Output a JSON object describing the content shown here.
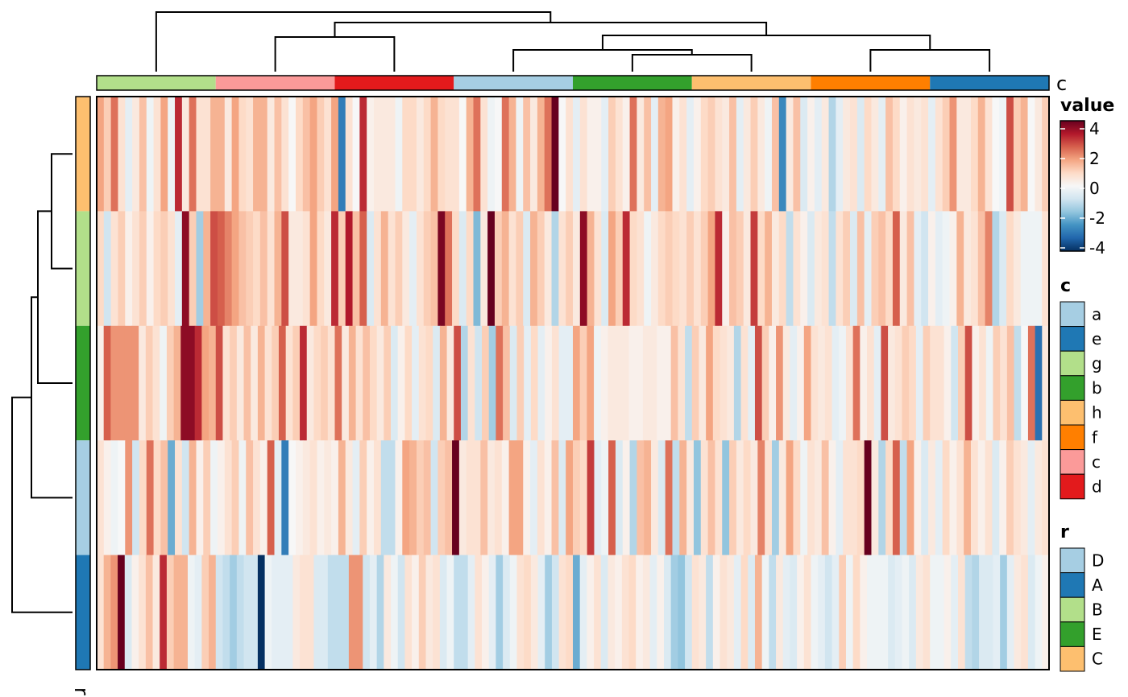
{
  "chart_data": {
    "type": "heatmap",
    "color_scale": {
      "title": "value",
      "min": -4,
      "max": 4,
      "ticks": [
        4,
        2,
        0,
        -2,
        -4
      ],
      "tick_labels": [
        "4",
        "2",
        "0",
        "-2",
        "-4"
      ],
      "palette": [
        "#053061",
        "#2166ac",
        "#4393c3",
        "#92c5de",
        "#d1e5f0",
        "#f7f7f7",
        "#fddbc7",
        "#f4a582",
        "#d6604d",
        "#b2182b",
        "#67001f"
      ]
    },
    "column_annotation": {
      "name": "c",
      "order": [
        "g",
        "c",
        "d",
        "a",
        "b",
        "h",
        "f",
        "e"
      ],
      "colors": {
        "a": "#a6cee3",
        "e": "#1f78b4",
        "g": "#b2df8a",
        "b": "#33a02c",
        "h": "#fdbf6f",
        "f": "#ff7f00",
        "c": "#fb9a99",
        "d": "#e31a1c"
      },
      "legend_order": [
        "a",
        "e",
        "g",
        "b",
        "h",
        "f",
        "c",
        "d"
      ]
    },
    "row_annotation": {
      "name": "r",
      "order": [
        "C",
        "B",
        "E",
        "D",
        "A"
      ],
      "colors": {
        "D": "#a6cee3",
        "A": "#1f78b4",
        "B": "#b2df8a",
        "E": "#33a02c",
        "C": "#fdbf6f"
      },
      "legend_order": [
        "D",
        "A",
        "B",
        "E",
        "C"
      ]
    },
    "rows": [
      {
        "id": "C",
        "values": [
          1.6,
          1.0,
          2.2,
          0.6,
          -0.4,
          0.4,
          1.2,
          -0.2,
          0.6,
          1.6,
          -0.2,
          3.0,
          0.4,
          2.2,
          0.6,
          0.6,
          1.4,
          1.4,
          0.4,
          1.6,
          0.8,
          0.6,
          1.4,
          1.4,
          0.4,
          1.2,
          0.6,
          0.0,
          0.8,
          1.2,
          1.6,
          1.0,
          0.6,
          1.6,
          -2.8,
          0.6,
          0.0,
          3.0,
          0.2,
          0.4,
          0.4,
          0.4,
          -0.2,
          0.8,
          0.8,
          0.4,
          0.8,
          1.4,
          0.8,
          0.6,
          0.6,
          0.0,
          1.4,
          2.2,
          0.6,
          -0.2,
          0.0,
          2.2,
          1.4,
          -0.2,
          1.2,
          0.4,
          1.4,
          2.2,
          4.0,
          0.0,
          0.6,
          -0.4,
          0.6,
          0.2,
          0.2,
          -0.4,
          1.0,
          0.6,
          0.2,
          2.2,
          0.4,
          1.2,
          -0.4,
          1.4,
          1.6,
          0.2,
          0.6,
          -0.4,
          0.2,
          0.8,
          1.0,
          0.6,
          0.4,
          1.2,
          -0.4,
          0.4,
          1.0,
          0.4,
          -0.2,
          1.2,
          -2.6,
          0.4,
          1.2,
          -0.6,
          0.2,
          -0.4,
          0.4,
          -1.2,
          -0.4,
          0.4,
          0.6,
          -0.6,
          0.8,
          0.4,
          -0.4,
          1.2,
          0.8,
          0.2,
          0.6,
          0.4,
          0.6,
          -0.4,
          0.6,
          1.0,
          1.8,
          0.4,
          0.4,
          0.8,
          1.4,
          0.6,
          0.0,
          -0.2,
          2.6,
          1.0,
          1.4,
          0.0,
          0.4,
          1.0
        ]
      },
      {
        "id": "B",
        "values": [
          0.8,
          -0.8,
          0.6,
          1.0,
          0.2,
          0.6,
          1.0,
          0.2,
          0.8,
          1.0,
          0.6,
          -0.4,
          3.6,
          1.0,
          -1.4,
          1.4,
          2.6,
          2.4,
          2.0,
          1.6,
          1.2,
          1.0,
          0.8,
          1.2,
          0.6,
          1.4,
          2.6,
          0.4,
          0.4,
          0.6,
          1.6,
          0.8,
          0.4,
          3.0,
          1.0,
          3.2,
          1.2,
          2.4,
          -0.6,
          0.6,
          1.4,
          0.6,
          1.0,
          0.4,
          -0.4,
          0.6,
          1.0,
          1.2,
          3.8,
          2.2,
          0.8,
          -0.6,
          0.8,
          -1.8,
          0.4,
          4.0,
          1.0,
          1.4,
          0.6,
          1.0,
          -0.6,
          1.4,
          1.0,
          0.4,
          -1.2,
          0.6,
          1.0,
          0.4,
          3.6,
          1.4,
          0.6,
          -0.6,
          1.6,
          1.0,
          3.0,
          0.8,
          0.6,
          -0.2,
          0.4,
          0.8,
          1.0,
          0.8,
          0.6,
          1.0,
          0.6,
          1.0,
          1.6,
          3.0,
          0.2,
          1.2,
          1.0,
          0.4,
          2.8,
          0.8,
          1.4,
          0.4,
          0.8,
          -1.0,
          0.6,
          0.2,
          -0.6,
          0.4,
          0.6,
          -1.0,
          0.6,
          1.0,
          -0.6,
          1.2,
          -0.4,
          1.0,
          1.2,
          0.8,
          2.4,
          0.4,
          1.2,
          -0.4,
          -0.8,
          0.2,
          -0.4,
          -0.2,
          0.2,
          1.4,
          0.4,
          0.6,
          1.2,
          2.0,
          -1.2,
          -0.6,
          0.8,
          0.4,
          -0.2,
          -0.2,
          -0.2,
          0.6
        ]
      },
      {
        "id": "E",
        "values": [
          0.2,
          2.4,
          1.8,
          1.8,
          1.8,
          1.8,
          0.4,
          1.0,
          0.6,
          -0.2,
          1.0,
          1.4,
          3.6,
          3.6,
          3.0,
          1.6,
          1.4,
          2.6,
          0.6,
          1.0,
          0.4,
          1.2,
          0.4,
          1.4,
          0.6,
          1.0,
          2.4,
          0.6,
          1.0,
          3.0,
          0.4,
          0.8,
          1.0,
          0.6,
          2.2,
          0.4,
          1.4,
          0.6,
          1.2,
          0.8,
          0.4,
          1.0,
          -0.6,
          0.2,
          0.8,
          -0.4,
          0.6,
          0.8,
          -0.6,
          1.4,
          0.4,
          2.6,
          -1.2,
          0.6,
          -0.8,
          1.0,
          -1.4,
          2.2,
          1.2,
          -0.6,
          1.0,
          -0.4,
          0.8,
          -0.4,
          0.2,
          0.6,
          -0.4,
          -0.4,
          1.6,
          1.0,
          1.6,
          -0.2,
          0.2,
          0.4,
          0.4,
          0.4,
          0.2,
          0.2,
          0.4,
          0.4,
          0.2,
          0.2,
          1.2,
          0.6,
          -1.0,
          1.0,
          0.4,
          1.6,
          0.8,
          0.6,
          0.4,
          -1.2,
          0.6,
          -0.4,
          2.6,
          1.0,
          0.2,
          1.8,
          0.4,
          -0.4,
          0.2,
          1.6,
          0.6,
          0.4,
          0.6,
          -0.4,
          -0.2,
          0.6,
          2.2,
          0.2,
          0.6,
          -0.4,
          2.6,
          0.4,
          0.6,
          1.0,
          0.8,
          -0.4,
          1.0,
          0.6,
          0.6,
          0.2,
          -0.8,
          1.0,
          2.6,
          0.2,
          0.6,
          -0.2,
          1.0,
          0.6,
          1.2,
          -1.0,
          0.0,
          2.2,
          -3.0,
          0.4
        ]
      },
      {
        "id": "D",
        "values": [
          0.6,
          0.2,
          -0.2,
          0.0,
          1.8,
          -0.8,
          0.8,
          2.2,
          0.8,
          1.2,
          -2.0,
          0.6,
          -0.8,
          1.4,
          0.2,
          1.0,
          -0.2,
          0.2,
          0.6,
          1.0,
          -0.2,
          1.2,
          0.6,
          0.2,
          2.4,
          -0.4,
          -2.8,
          0.0,
          0.2,
          0.4,
          0.6,
          0.2,
          0.4,
          0.2,
          1.4,
          0.4,
          -0.4,
          1.0,
          0.2,
          0.6,
          -1.0,
          -1.0,
          0.2,
          1.6,
          1.4,
          1.0,
          1.2,
          -0.8,
          1.0,
          1.2,
          4.0,
          0.4,
          0.6,
          0.6,
          1.2,
          0.4,
          0.6,
          0.2,
          1.6,
          1.6,
          0.2,
          -0.4,
          0.6,
          0.2,
          1.2,
          -0.6,
          1.6,
          1.0,
          0.8,
          2.8,
          -0.4,
          -0.2,
          2.4,
          -0.6,
          0.2,
          -1.2,
          1.2,
          1.4,
          0.4,
          -0.6,
          2.2,
          -1.0,
          1.4,
          0.4,
          -1.6,
          0.6,
          1.2,
          0.6,
          -1.6,
          1.0,
          0.4,
          0.8,
          0.4,
          2.0,
          0.6,
          -1.4,
          0.4,
          1.6,
          0.8,
          -0.2,
          0.6,
          0.4,
          1.2,
          0.2,
          -0.4,
          0.6,
          0.6,
          0.8,
          4.0,
          0.4,
          -1.2,
          0.8,
          2.4,
          -1.0,
          1.6,
          0.2,
          -0.6,
          0.4,
          -0.4,
          0.8,
          0.2,
          0.6,
          1.4,
          0.6,
          0.2,
          0.6,
          -0.6,
          0.2,
          1.0,
          0.6,
          0.4,
          -0.4,
          0.4,
          0.6
        ]
      },
      {
        "id": "A",
        "values": [
          0.6,
          1.4,
          1.8,
          4.0,
          -0.6,
          0.2,
          0.6,
          1.2,
          0.4,
          3.0,
          1.0,
          1.4,
          1.4,
          -0.2,
          -0.4,
          1.0,
          1.4,
          -0.8,
          -1.0,
          -1.4,
          -1.0,
          -0.8,
          -0.8,
          -4.0,
          -0.2,
          -0.4,
          -0.4,
          -0.4,
          0.4,
          0.6,
          0.6,
          -0.6,
          -0.6,
          -1.0,
          -1.0,
          -1.0,
          1.8,
          1.8,
          -0.8,
          -0.4,
          -1.2,
          0.4,
          -0.2,
          -0.8,
          0.6,
          0.2,
          1.0,
          0.4,
          0.6,
          -0.6,
          -0.2,
          -1.0,
          -1.0,
          -0.4,
          0.6,
          0.2,
          -0.4,
          -1.4,
          -0.6,
          -0.2,
          0.6,
          0.8,
          0.4,
          -0.4,
          -1.4,
          -0.8,
          0.6,
          0.8,
          -2.0,
          -0.4,
          0.2,
          0.6,
          -0.6,
          0.4,
          0.2,
          0.6,
          0.8,
          0.2,
          0.4,
          -0.4,
          0.2,
          -0.6,
          -1.4,
          -1.6,
          -0.8,
          0.6,
          0.4,
          -1.0,
          0.2,
          0.6,
          0.4,
          -0.4,
          0.8,
          -0.6,
          1.4,
          -0.2,
          -1.0,
          0.4,
          -0.4,
          -0.6,
          0.2,
          0.6,
          -0.2,
          -0.4,
          -0.8,
          -0.4,
          1.0,
          -0.2,
          0.8,
          0.2,
          -0.2,
          -0.2,
          -0.2,
          -0.6,
          -0.4,
          -0.2,
          -0.6,
          0.4,
          0.6,
          -0.2,
          -0.2,
          0.2,
          -0.4,
          0.6,
          -1.0,
          -1.2,
          -0.6,
          -0.6,
          -0.4,
          -1.4,
          -0.4,
          0.4,
          0.6,
          -0.6,
          -0.2,
          0.2
        ]
      }
    ]
  }
}
